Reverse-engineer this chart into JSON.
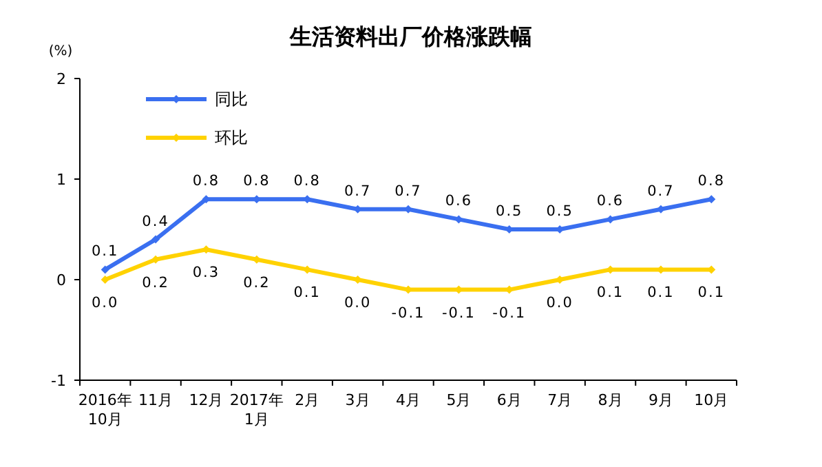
{
  "chart_data": {
    "type": "line",
    "title": "生活资料出厂价格涨跌幅",
    "ylabel": "(%)",
    "categories": [
      "2016年\n10月",
      "11月",
      "12月",
      "2017年\n1月",
      "2月",
      "3月",
      "4月",
      "5月",
      "6月",
      "7月",
      "8月",
      "9月",
      "10月"
    ],
    "series": [
      {
        "name": "同比",
        "color": "#3a6ff0",
        "values": [
          0.1,
          0.4,
          0.8,
          0.8,
          0.8,
          0.7,
          0.7,
          0.6,
          0.5,
          0.5,
          0.6,
          0.7,
          0.8
        ],
        "value_labels": [
          "0.1",
          "0.4",
          "0.8",
          "0.8",
          "0.8",
          "0.7",
          "0.7",
          "0.6",
          "0.5",
          "0.5",
          "0.6",
          "0.7",
          "0.8"
        ]
      },
      {
        "name": "环比",
        "color": "#ffd200",
        "values": [
          0.0,
          0.2,
          0.3,
          0.2,
          0.1,
          0.0,
          -0.1,
          -0.1,
          -0.1,
          0.0,
          0.1,
          0.1,
          0.1
        ],
        "value_labels": [
          "0.0",
          "0.2",
          "0.3",
          "0.2",
          "0.1",
          "0.0",
          "-0.1",
          "-0.1",
          "-0.1",
          "0.0",
          "0.1",
          "0.1",
          "0.1"
        ]
      }
    ],
    "ylim": [
      -1,
      2
    ],
    "yticks": [
      -1,
      0,
      1,
      2
    ],
    "grid": false,
    "legend": "top left",
    "marker": "diamond",
    "line_style": "solid"
  }
}
